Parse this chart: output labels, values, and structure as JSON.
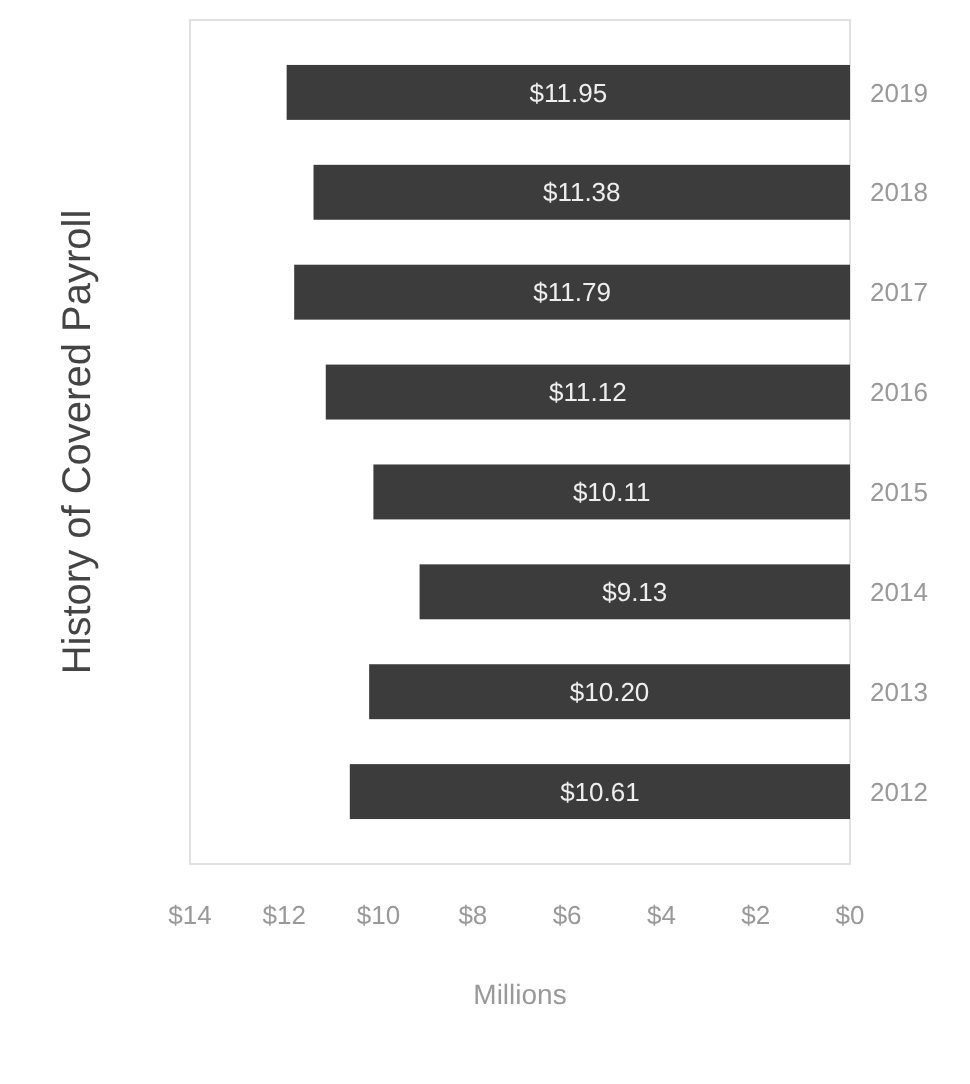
{
  "chart_data": {
    "type": "bar",
    "orientation": "horizontal",
    "title": "History of Covered Payroll",
    "xlabel": "Millions",
    "categories": [
      "2019",
      "2018",
      "2017",
      "2016",
      "2015",
      "2014",
      "2013",
      "2012"
    ],
    "values": [
      11.95,
      11.38,
      11.79,
      11.12,
      10.11,
      9.13,
      10.2,
      10.61
    ],
    "value_labels": [
      "$11.95",
      "$11.38",
      "$11.79",
      "$11.12",
      "$10.11",
      "$9.13",
      "$10.20",
      "$10.61"
    ],
    "color": "#3c3c3c",
    "xlim": [
      14,
      0
    ],
    "xticks": [
      {
        "value": 14,
        "label": "$14"
      },
      {
        "value": 12,
        "label": "$12"
      },
      {
        "value": 10,
        "label": "$10"
      },
      {
        "value": 8,
        "label": "$8"
      },
      {
        "value": 6,
        "label": "$6"
      },
      {
        "value": 4,
        "label": "$4"
      },
      {
        "value": 2,
        "label": "$2"
      },
      {
        "value": 0,
        "label": "$0"
      }
    ]
  }
}
